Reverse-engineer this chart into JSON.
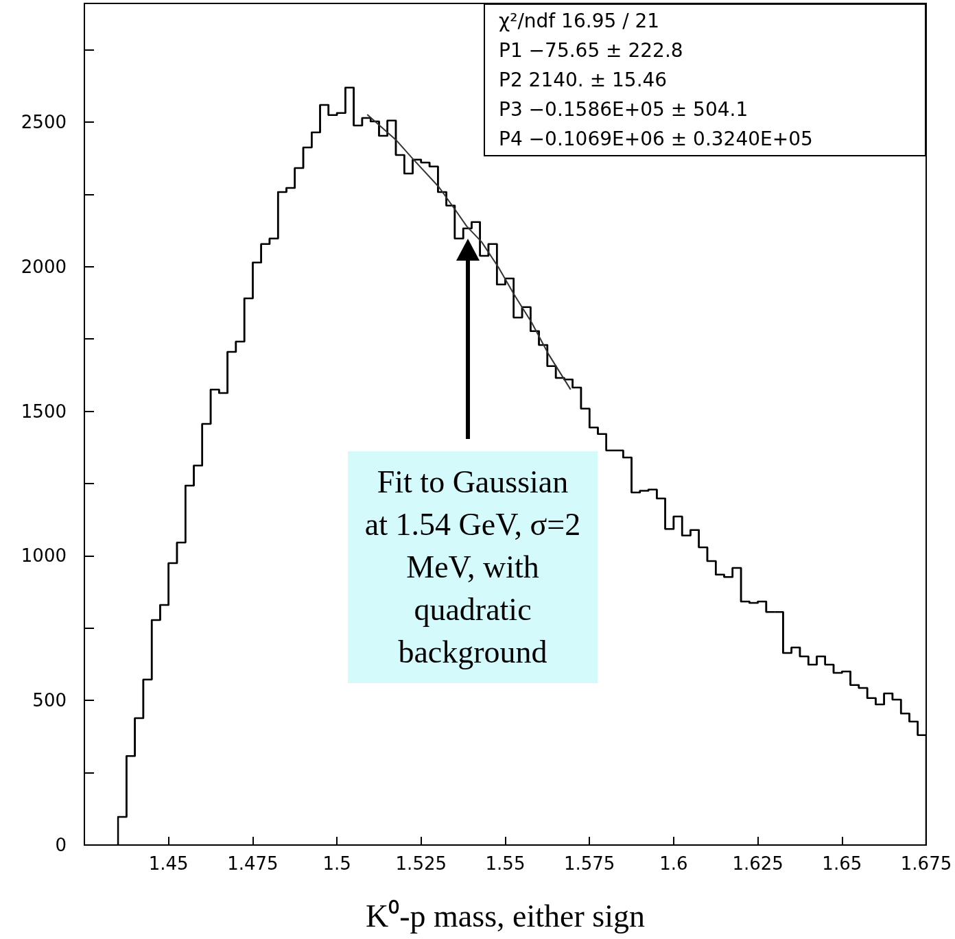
{
  "chart_data": {
    "type": "histogram",
    "xlabel": "K⁰-p mass, either sign",
    "xlim": [
      1.425,
      1.675
    ],
    "xticks": [
      1.45,
      1.475,
      1.5,
      1.525,
      1.55,
      1.575,
      1.6,
      1.625,
      1.65,
      1.675
    ],
    "ylim": [
      0,
      2910
    ],
    "yticks": [
      0,
      {
        "value": 250,
        "label": null
      },
      500,
      {
        "value": 750,
        "label": null
      },
      1000,
      {
        "value": 1250,
        "label": null
      },
      1500,
      {
        "value": 1750,
        "label": null
      },
      2000,
      {
        "value": 2250,
        "label": null
      },
      2500,
      {
        "value": 2750,
        "label": null
      }
    ],
    "grid": false,
    "series": [
      {
        "color": "#000000",
        "bins": [
          1.435,
          1.4375,
          1.44,
          1.4425,
          1.445,
          1.4475,
          1.45,
          1.4525,
          1.455,
          1.4575,
          1.46,
          1.4625,
          1.465,
          1.4675,
          1.47,
          1.4725,
          1.475,
          1.4775,
          1.48,
          1.4825,
          1.485,
          1.4875,
          1.49,
          1.4925,
          1.495,
          1.4975,
          1.5,
          1.5025,
          1.505,
          1.5075,
          1.51,
          1.5125,
          1.515,
          1.5175,
          1.52,
          1.5225,
          1.525,
          1.5275,
          1.53,
          1.5325,
          1.535,
          1.5375,
          1.54,
          1.5425,
          1.545,
          1.5475,
          1.55,
          1.5525,
          1.555,
          1.5575,
          1.56,
          1.5625,
          1.565,
          1.5675,
          1.57,
          1.5725,
          1.575,
          1.5775,
          1.58,
          1.5825,
          1.585,
          1.5875,
          1.59,
          1.5925,
          1.595,
          1.5975,
          1.6,
          1.6025,
          1.605,
          1.6075,
          1.61,
          1.6125,
          1.615,
          1.6175,
          1.62,
          1.6225,
          1.625,
          1.6275,
          1.63,
          1.6325,
          1.635,
          1.6375,
          1.64,
          1.6425,
          1.645,
          1.6475,
          1.65,
          1.6525,
          1.655,
          1.6575,
          1.66,
          1.6625,
          1.665,
          1.6675,
          1.67,
          1.6725,
          1.675
        ],
        "values": [
          97,
          308,
          439,
          572,
          778,
          830,
          975,
          1046,
          1243,
          1312,
          1456,
          1575,
          1563,
          1705,
          1741,
          1890,
          2014,
          2078,
          2097,
          2258,
          2272,
          2341,
          2412,
          2464,
          2559,
          2524,
          2531,
          2619,
          2488,
          2514,
          2502,
          2452,
          2505,
          2386,
          2322,
          2370,
          2360,
          2346,
          2258,
          2211,
          2097,
          2132,
          2154,
          2037,
          2078,
          1938,
          1959,
          1824,
          1860,
          1777,
          1729,
          1656,
          1615,
          1610,
          1582,
          1509,
          1444,
          1421,
          1364,
          1364,
          1340,
          1219,
          1225,
          1229,
          1198,
          1093,
          1136,
          1070,
          1089,
          1029,
          982,
          935,
          927,
          958,
          842,
          837,
          842,
          806,
          806,
          664,
          683,
          652,
          624,
          652,
          624,
          595,
          600,
          553,
          543,
          508,
          486,
          524,
          503,
          455,
          427,
          380
        ]
      },
      {
        "type": "line",
        "color": "#333333",
        "x": [
          1.509,
          1.5177,
          1.5226,
          1.5303,
          1.5354,
          1.5385,
          1.543,
          1.548,
          1.5527,
          1.5578,
          1.5629,
          1.5694
        ],
        "values": [
          2526,
          2436,
          2372,
          2275,
          2192,
          2140,
          2085,
          1997,
          1902,
          1807,
          1696,
          1575
        ]
      }
    ],
    "marker": "none",
    "annotations": [
      "Fit to Gaussian at 1.54 GeV, σ=2 MeV, with quadratic background",
      "χ²/ndf 16.95 / 21",
      "P1 −75.65 ± 222.8",
      "P2 2140. ± 15.46",
      "P3 −0.1586E+05 ± 504.1",
      "P4 −0.1069E+06 ± 0.3240E+05"
    ]
  }
}
